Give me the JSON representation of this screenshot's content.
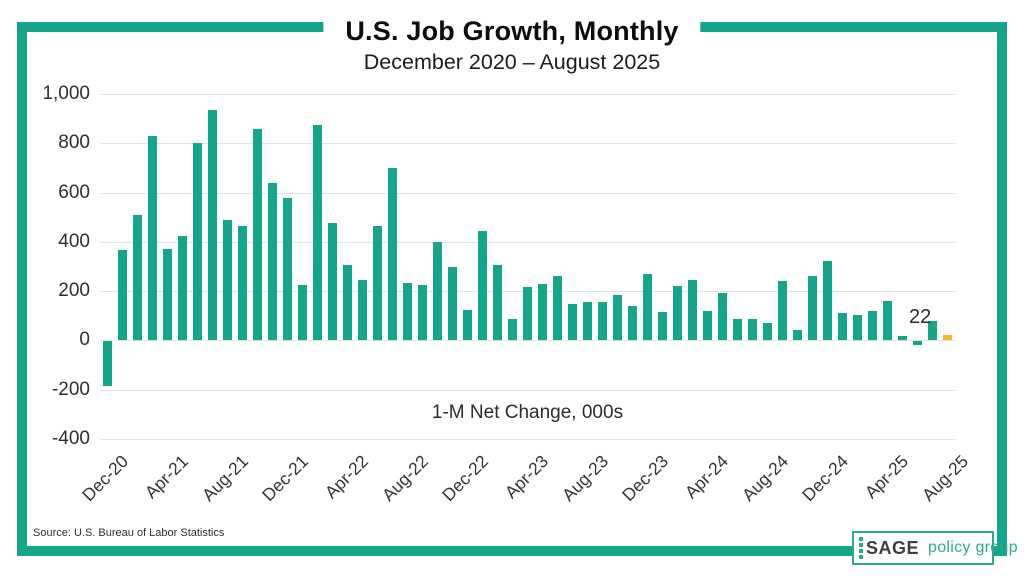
{
  "header": {
    "title": "U.S. Job Growth, Monthly",
    "subtitle": "December 2020 – August 2025"
  },
  "annotation": "1-M Net Change, 000s",
  "source": "Source: U.S. Bureau of Labor Statistics",
  "last_point_label": "22",
  "logo": {
    "brand": "SAGE",
    "suffix": "policy group"
  },
  "colors": {
    "bar_teal": "#14a58a",
    "bar_highlight": "#f2b824",
    "frame": "#14a58a",
    "grid": "#e3e3e3"
  },
  "chart_data": {
    "type": "bar",
    "title": "U.S. Job Growth, Monthly",
    "subtitle": "December 2020 – August 2025",
    "xlabel": "",
    "ylabel": "1-M Net Change, 000s",
    "ylim": [
      -400,
      1000
    ],
    "grid": true,
    "y_tick_labels": [
      "1,000",
      "800",
      "600",
      "400",
      "200",
      "0",
      "-200",
      "-400"
    ],
    "x_tick_labels": [
      "Dec-20",
      "Apr-21",
      "Aug-21",
      "Dec-21",
      "Apr-22",
      "Aug-22",
      "Dec-22",
      "Apr-23",
      "Aug-23",
      "Dec-23",
      "Apr-24",
      "Aug-24",
      "Dec-24",
      "Apr-25",
      "Aug-25"
    ],
    "x_tick_every": 4,
    "categories": [
      "Dec-20",
      "Jan-21",
      "Feb-21",
      "Mar-21",
      "Apr-21",
      "May-21",
      "Jun-21",
      "Jul-21",
      "Aug-21",
      "Sep-21",
      "Oct-21",
      "Nov-21",
      "Dec-21",
      "Jan-22",
      "Feb-22",
      "Mar-22",
      "Apr-22",
      "May-22",
      "Jun-22",
      "Jul-22",
      "Aug-22",
      "Sep-22",
      "Oct-22",
      "Nov-22",
      "Dec-22",
      "Jan-23",
      "Feb-23",
      "Mar-23",
      "Apr-23",
      "May-23",
      "Jun-23",
      "Jul-23",
      "Aug-23",
      "Sep-23",
      "Oct-23",
      "Nov-23",
      "Dec-23",
      "Jan-24",
      "Feb-24",
      "Mar-24",
      "Apr-24",
      "May-24",
      "Jun-24",
      "Jul-24",
      "Aug-24",
      "Sep-24",
      "Oct-24",
      "Nov-24",
      "Dec-24",
      "Jan-25",
      "Feb-25",
      "Mar-25",
      "Apr-25",
      "May-25",
      "Jun-25",
      "Jul-25",
      "Aug-25"
    ],
    "values": [
      -180,
      365,
      510,
      830,
      370,
      425,
      800,
      935,
      490,
      465,
      860,
      640,
      580,
      225,
      875,
      475,
      305,
      245,
      465,
      700,
      235,
      225,
      400,
      300,
      125,
      445,
      305,
      85,
      216,
      230,
      260,
      148,
      157,
      157,
      185,
      141,
      269,
      117,
      222,
      246,
      118,
      193,
      87,
      88,
      71,
      240,
      44,
      261,
      323,
      111,
      102,
      120,
      158,
      19,
      -13,
      79,
      22
    ],
    "highlight_last_bar": true,
    "last_bar_data_label": "22",
    "legend": null
  }
}
